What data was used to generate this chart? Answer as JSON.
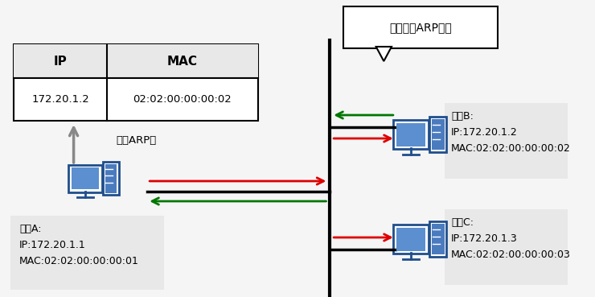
{
  "bg_color": "#f5f5f5",
  "white": "#ffffff",
  "red_color": "#dd0000",
  "green_color": "#007700",
  "black_color": "#000000",
  "gray_color": "#888888",
  "label_bg_color": "#e8e8e8",
  "icon_color": "#1f4e8c",
  "callout_text": "单播发送ARP响应",
  "host_a_label": "主机A:\nIP:172.20.1.1\nMAC:02:02:00:00:00:01",
  "host_b_label": "主机B:\nIP:172.20.1.2\nMAC:02:02:00:00:00:02",
  "host_c_label": "主机C:\nIP:172.20.1.3\nMAC:02:02:00:00:00:03",
  "update_label": "更新ARP表",
  "ip_header": "IP",
  "mac_header": "MAC",
  "ip_val": "172.20.1.2",
  "mac_val": "02:02:00:00:00:02",
  "vline_x": 0.575,
  "fig_w": 7.4,
  "fig_h": 3.69,
  "dpi": 100
}
